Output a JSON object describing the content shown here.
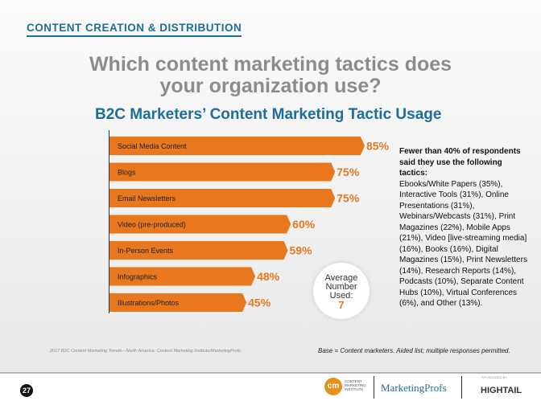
{
  "section": "CONTENT CREATION & DISTRIBUTION",
  "question": "Which content marketing tactics does your organization use?",
  "chart_data": {
    "type": "bar",
    "orientation": "horizontal",
    "title": "B2C Marketers’ Content Marketing Tactic Usage",
    "categories": [
      "Social Media Content",
      "Blogs",
      "Email Newsletters",
      "Video (pre-produced)",
      "In-Person Events",
      "Infographics",
      "Illustrations/Photos"
    ],
    "values": [
      85,
      75,
      75,
      60,
      59,
      48,
      45
    ],
    "unit": "%",
    "xlim": [
      0,
      100
    ],
    "grid": false,
    "bar_color": "#e8771e",
    "label_color": "#e8771e"
  },
  "side_note": {
    "heading": "Fewer than 40% of respondents said they use the following tactics:",
    "body": "Ebooks/White Papers (35%), Interactive Tools (31%), Online Presentations (31%), Webinars/Webcasts (31%), Print Magazines (22%), Mobile Apps (21%), Video [live-streaming media] (16%), Books (16%), Digital Magazines (15%), Print Newsletters (14%), Research Reports (14%), Podcasts (10%), Separate Content Hubs (10%), Virtual Conferences (6%), and Other (13%)."
  },
  "average": {
    "label": "Average Number Used:",
    "value": "7"
  },
  "source": "2017 B2C Content Marketing Trends—North America: Content Marketing Institute/MarketingProfs",
  "base": "Base = Content marketers. Aided list; multiple responses permitted.",
  "page_number": "27",
  "logos": {
    "cmi": "cm",
    "cmi_text": "CONTENT MARKETING INSTITUTE",
    "marketingprofs": "MarketingProfs",
    "sponsored": "SPONSORED BY",
    "hightail": "HIGHTAIL"
  }
}
